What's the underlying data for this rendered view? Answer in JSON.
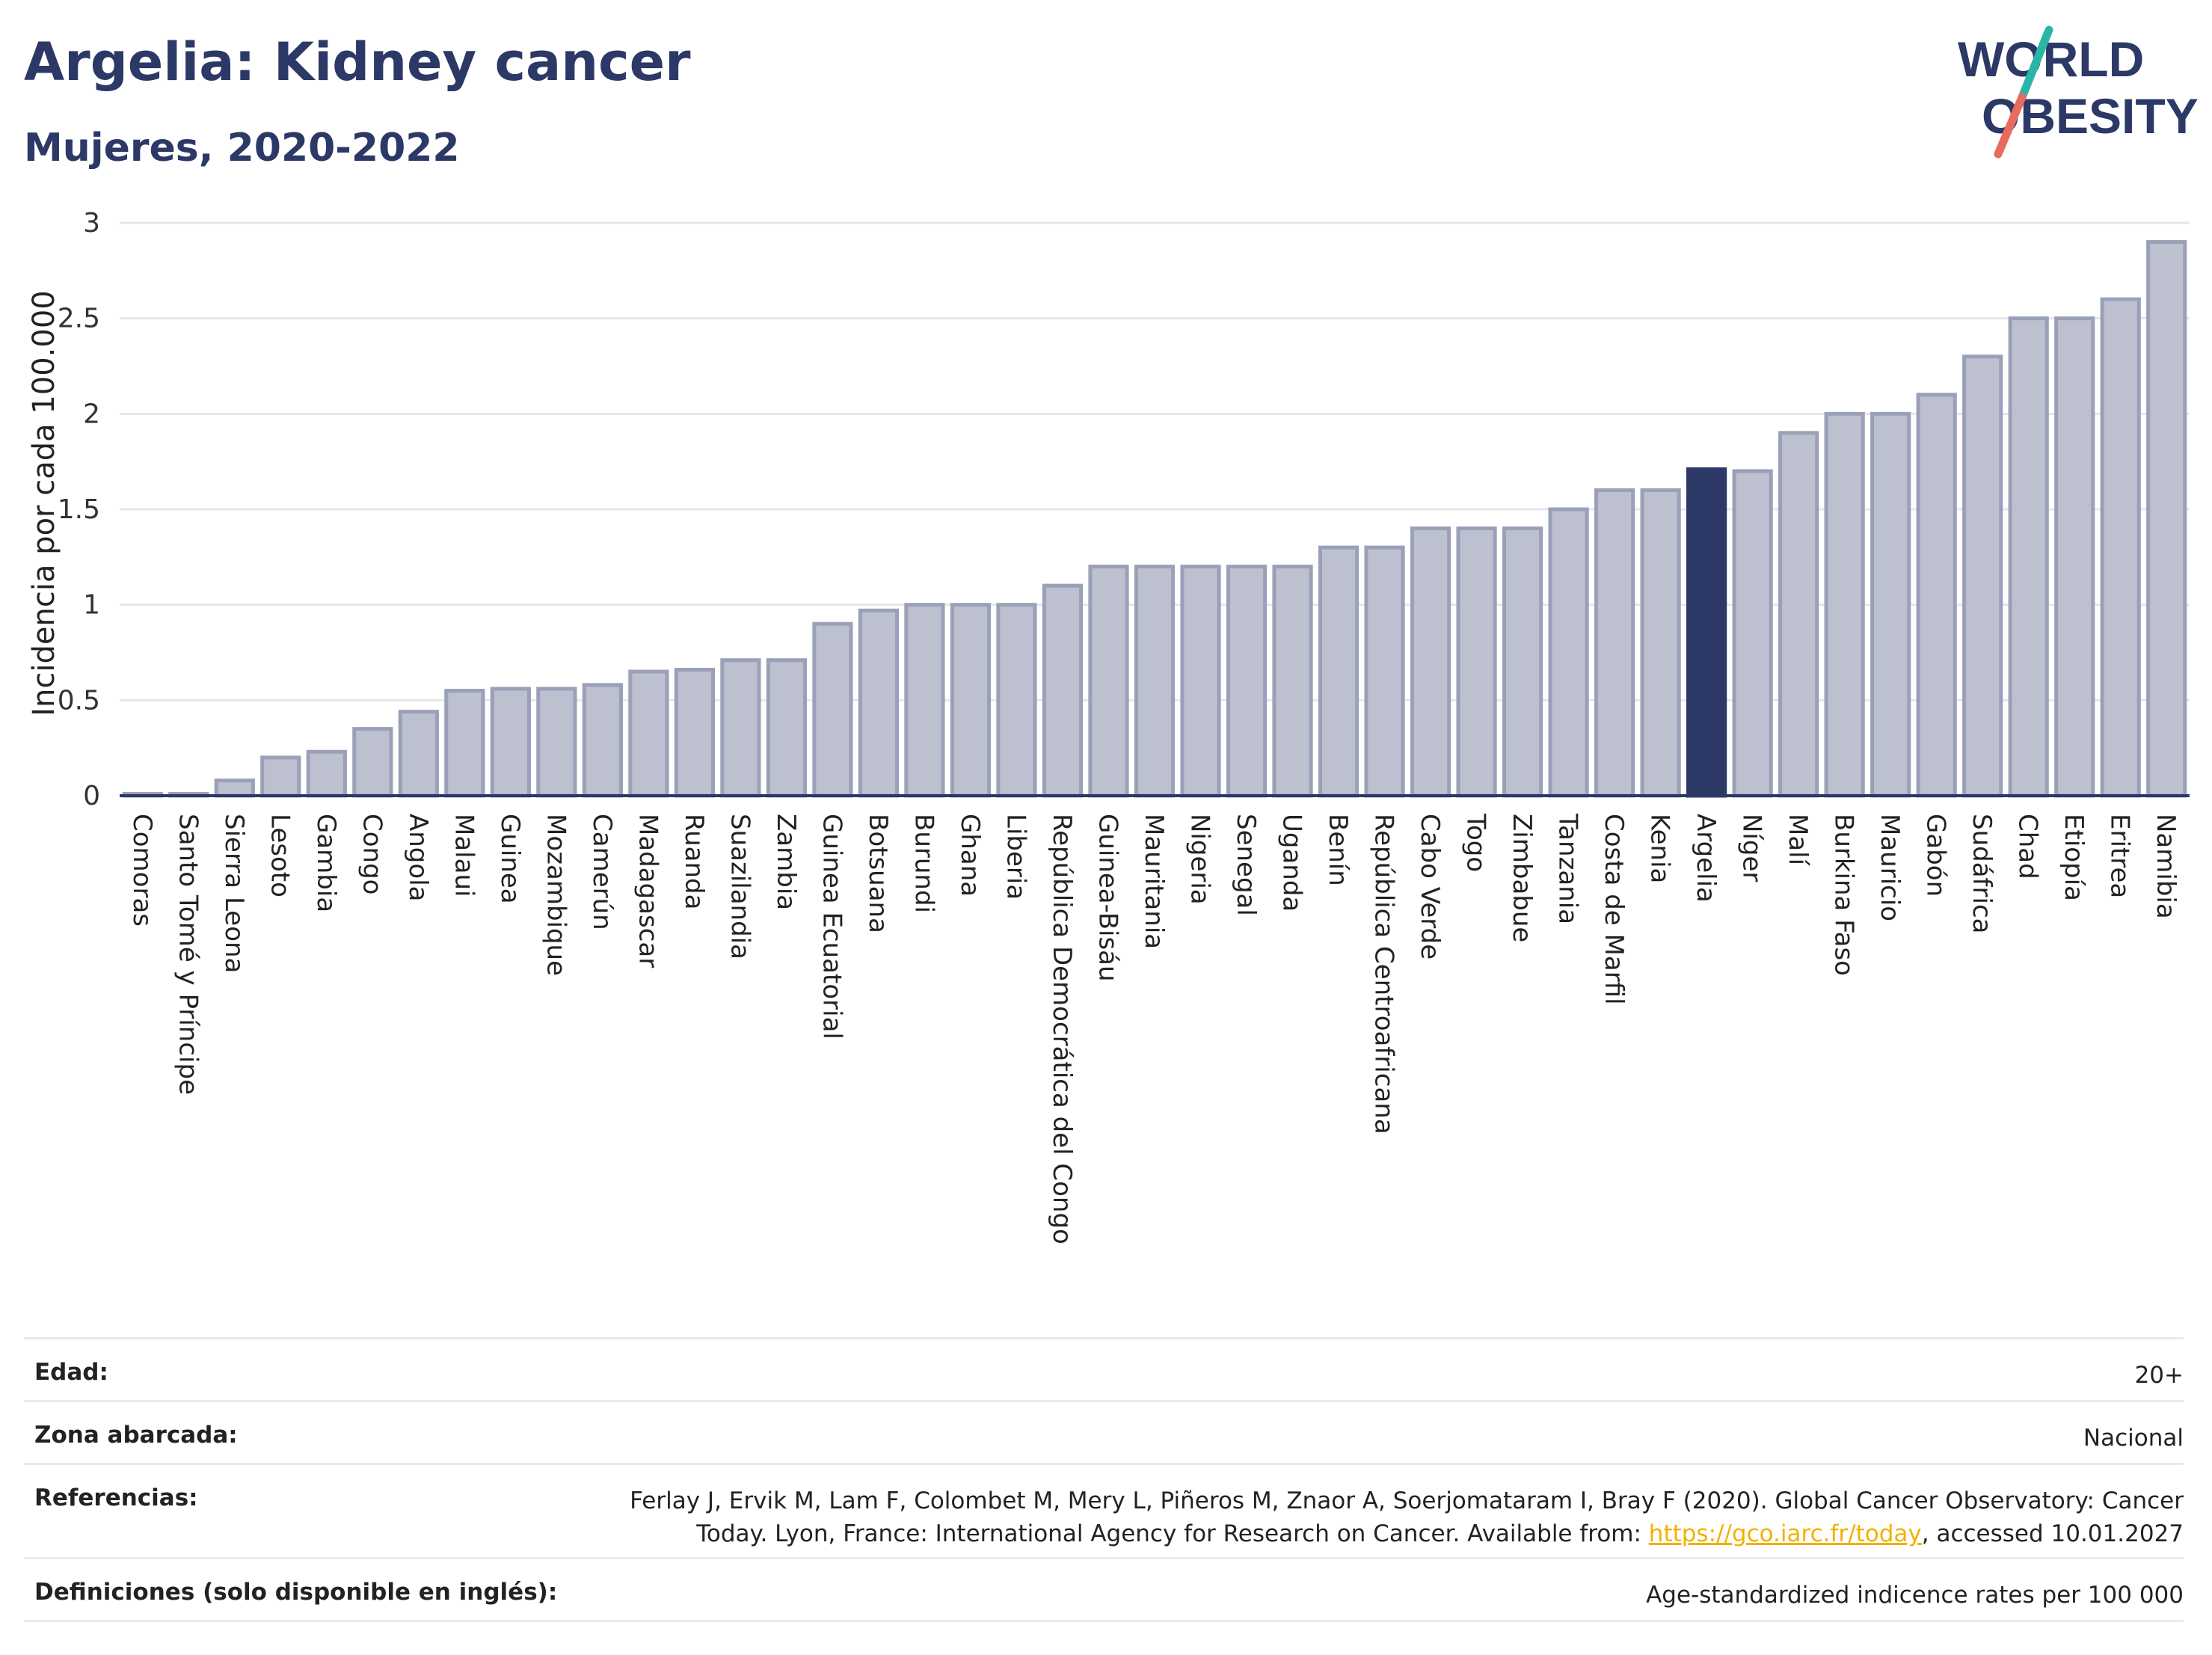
{
  "header": {
    "title": "Argelia: Kidney cancer",
    "subtitle": "Mujeres, 2020-2022"
  },
  "logo": {
    "line1": "WORLD",
    "line2": "OBESITY",
    "colors": {
      "text": "#2c3866",
      "slash_top": "#2bb5a8",
      "slash_bottom": "#e86b5f"
    }
  },
  "colors": {
    "bar_fill": "#bcc0cf",
    "bar_stroke": "#9aa0b8",
    "highlight_fill": "#2c3866",
    "grid": "#e6e7ec",
    "link": "#f2b100"
  },
  "chart_data": {
    "type": "bar",
    "title": "Argelia: Kidney cancer",
    "subtitle": "Mujeres, 2020-2022",
    "ylabel": "Incidencia por cada 100.000",
    "xlabel": "",
    "ylim": [
      0,
      3
    ],
    "yticks": [
      "0",
      "0.5",
      "1",
      "1.5",
      "2",
      "2.5",
      "3"
    ],
    "ytick_values": [
      0,
      0.5,
      1,
      1.5,
      2,
      2.5,
      3
    ],
    "grid": true,
    "highlight": "Argelia",
    "categories": [
      "Comoras",
      "Santo Tomé y Príncipe",
      "Sierra Leona",
      "Lesoto",
      "Gambia",
      "Congo",
      "Angola",
      "Malaui",
      "Guinea",
      "Mozambique",
      "Camerún",
      "Madagascar",
      "Ruanda",
      "Suazilandia",
      "Zambia",
      "Guinea Ecuatorial",
      "Botsuana",
      "Burundi",
      "Ghana",
      "Liberia",
      "República Democrática del Congo",
      "Guinea-Bisáu",
      "Mauritania",
      "Nigeria",
      "Senegal",
      "Uganda",
      "Benín",
      "República Centroafricana",
      "Cabo Verde",
      "Togo",
      "Zimbabue",
      "Tanzania",
      "Costa de Marfil",
      "Kenia",
      "Argelia",
      "Níger",
      "Malí",
      "Burkina Faso",
      "Mauricio",
      "Gabón",
      "Sudáfrica",
      "Chad",
      "Etiopía",
      "Eritrea",
      "Namibia"
    ],
    "values": [
      0.01,
      0.01,
      0.08,
      0.2,
      0.23,
      0.35,
      0.44,
      0.55,
      0.56,
      0.56,
      0.58,
      0.65,
      0.66,
      0.71,
      0.71,
      0.9,
      0.97,
      1.0,
      1.0,
      1.0,
      1.1,
      1.2,
      1.2,
      1.2,
      1.2,
      1.2,
      1.3,
      1.3,
      1.4,
      1.4,
      1.4,
      1.5,
      1.6,
      1.6,
      1.71,
      1.7,
      1.9,
      2.0,
      2.0,
      2.1,
      2.3,
      2.5,
      2.5,
      2.6,
      2.9
    ]
  },
  "info": {
    "rows": [
      {
        "key": "Edad:",
        "value": "20+"
      },
      {
        "key": "Zona abarcada:",
        "value": "Nacional"
      },
      {
        "key": "Referencias:",
        "value_line1": "Ferlay J, Ervik M, Lam F, Colombet M, Mery L, Piñeros M, Znaor A, Soerjomataram I, Bray F (2020). Global Cancer Observatory: Cancer",
        "value_line2_pre": "Today. Lyon, France: International Agency for Research on Cancer. Available from: ",
        "link": "https://gco.iarc.fr/today",
        "value_line2_post": ", accessed 10.01.2027"
      },
      {
        "key": "Definiciones (solo disponible en inglés):",
        "value": "Age-standardized indicence rates per 100 000"
      }
    ]
  }
}
